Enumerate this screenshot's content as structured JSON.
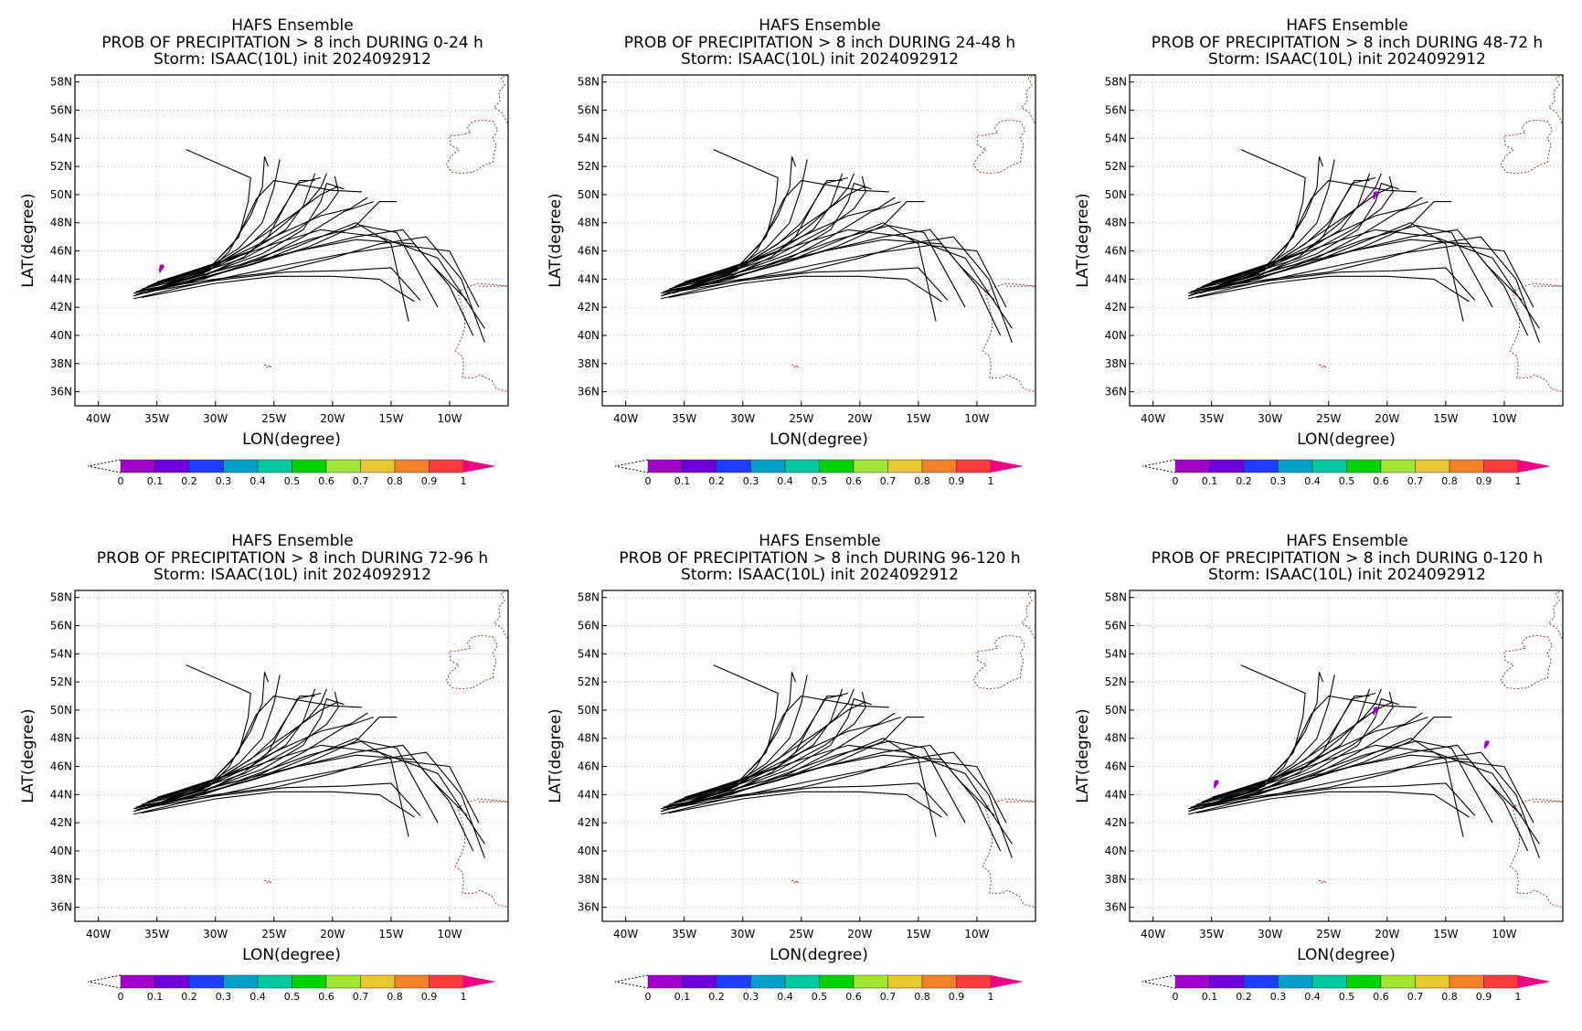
{
  "figure": {
    "panels": [
      {
        "line1": "HAFS Ensemble",
        "line2": "PROB OF PRECIPITATION > 8 inch DURING  0-24 h",
        "line3": "Storm: ISAAC(10L) init 2024092912"
      },
      {
        "line1": "HAFS Ensemble",
        "line2": "PROB OF PRECIPITATION > 8 inch DURING 24-48 h",
        "line3": "Storm: ISAAC(10L) init 2024092912"
      },
      {
        "line1": "HAFS Ensemble",
        "line2": "PROB OF PRECIPITATION > 8 inch DURING 48-72 h",
        "line3": "Storm: ISAAC(10L) init 2024092912"
      },
      {
        "line1": "HAFS Ensemble",
        "line2": "PROB OF PRECIPITATION > 8 inch DURING 72-96 h",
        "line3": "Storm: ISAAC(10L) init 2024092912"
      },
      {
        "line1": "HAFS Ensemble",
        "line2": "PROB OF PRECIPITATION > 8 inch DURING 96-120 h",
        "line3": "Storm: ISAAC(10L) init 2024092912"
      },
      {
        "line1": "HAFS Ensemble",
        "line2": "PROB OF PRECIPITATION > 8 inch DURING 0-120 h",
        "line3": "Storm: ISAAC(10L) init 2024092912"
      }
    ],
    "xlabel": "LON(degree)",
    "ylabel": "LAT(degree)",
    "lon_ticks": [
      "40W",
      "35W",
      "30W",
      "25W",
      "20W",
      "15W",
      "10W"
    ],
    "lat_ticks": [
      "36N",
      "38N",
      "40N",
      "42N",
      "44N",
      "46N",
      "48N",
      "50N",
      "52N",
      "54N",
      "56N",
      "58N"
    ],
    "colorbar_labels": [
      "0",
      "0.1",
      "0.2",
      "0.3",
      "0.4",
      "0.5",
      "0.6",
      "0.7",
      "0.8",
      "0.9",
      "1"
    ],
    "colorbar_colors": [
      "#a000c8",
      "#6e00dc",
      "#1e3cff",
      "#00a0c8",
      "#00c8a0",
      "#00d200",
      "#a0e632",
      "#e6c832",
      "#f08228",
      "#fa3c3c",
      "#f00082"
    ]
  },
  "chart_data": {
    "type": "track-probability-map",
    "extent": {
      "lon_min": -42,
      "lon_max": -5,
      "lat_min": 35,
      "lat_max": 58.5
    },
    "grid": true,
    "probability_blobs": [
      [
        {
          "lon": -34.6,
          "lat": 44.6,
          "value": 0.05
        }
      ],
      [],
      [
        {
          "lon": -21.0,
          "lat": 49.8,
          "value": 0.05
        }
      ],
      [],
      [],
      [
        {
          "lon": -34.6,
          "lat": 44.6,
          "value": 0.05
        },
        {
          "lon": -21.0,
          "lat": 49.8,
          "value": 0.05
        },
        {
          "lon": -11.5,
          "lat": 47.4,
          "value": 0.05
        }
      ]
    ],
    "tracks": [
      [
        [
          -37.0,
          42.8
        ],
        [
          -34.0,
          43.5
        ],
        [
          -30.0,
          44.0
        ],
        [
          -25.0,
          44.5
        ],
        [
          -20.0,
          45.5
        ],
        [
          -16.0,
          46.5
        ],
        [
          -12.0,
          47.0
        ],
        [
          -9.0,
          44.0
        ],
        [
          -7.0,
          39.5
        ]
      ],
      [
        [
          -37.0,
          42.6
        ],
        [
          -33.0,
          43.4
        ],
        [
          -28.0,
          44.3
        ],
        [
          -24.0,
          45.0
        ],
        [
          -19.0,
          45.8
        ],
        [
          -14.0,
          46.4
        ],
        [
          -10.0,
          46.0
        ],
        [
          -7.5,
          42.0
        ]
      ],
      [
        [
          -37.0,
          43.0
        ],
        [
          -33.0,
          43.7
        ],
        [
          -28.0,
          44.8
        ],
        [
          -23.0,
          46.0
        ],
        [
          -18.0,
          47.0
        ],
        [
          -14.0,
          47.5
        ],
        [
          -11.5,
          45.0
        ],
        [
          -8.5,
          42.5
        ]
      ],
      [
        [
          -36.8,
          43.1
        ],
        [
          -32.0,
          43.9
        ],
        [
          -27.0,
          45.0
        ],
        [
          -22.0,
          46.3
        ],
        [
          -18.0,
          47.8
        ],
        [
          -16.0,
          49.5
        ],
        [
          -14.5,
          49.5
        ]
      ],
      [
        [
          -36.8,
          42.9
        ],
        [
          -32.0,
          43.8
        ],
        [
          -26.0,
          45.3
        ],
        [
          -21.0,
          47.0
        ],
        [
          -18.0,
          48.0
        ],
        [
          -15.0,
          46.5
        ],
        [
          -13.5,
          41.0
        ]
      ],
      [
        [
          -36.5,
          43.2
        ],
        [
          -31.0,
          44.0
        ],
        [
          -26.0,
          45.5
        ],
        [
          -22.5,
          47.0
        ],
        [
          -19.0,
          48.8
        ],
        [
          -16.5,
          49.5
        ]
      ],
      [
        [
          -36.5,
          43.0
        ],
        [
          -30.0,
          43.9
        ],
        [
          -24.0,
          44.5
        ],
        [
          -19.0,
          44.6
        ],
        [
          -15.0,
          44.8
        ],
        [
          -12.5,
          42.5
        ]
      ],
      [
        [
          -36.3,
          42.7
        ],
        [
          -30.0,
          43.7
        ],
        [
          -25.0,
          44.2
        ],
        [
          -20.0,
          44.2
        ],
        [
          -16.0,
          44.0
        ],
        [
          -13.0,
          42.4
        ]
      ],
      [
        [
          -36.3,
          43.3
        ],
        [
          -31.0,
          44.3
        ],
        [
          -26.0,
          45.8
        ],
        [
          -22.5,
          47.5
        ],
        [
          -21.0,
          49.5
        ],
        [
          -20.5,
          50.8
        ],
        [
          -19.0,
          50.4
        ]
      ],
      [
        [
          -36.0,
          43.4
        ],
        [
          -31.0,
          44.5
        ],
        [
          -27.0,
          46.0
        ],
        [
          -24.0,
          47.5
        ],
        [
          -22.5,
          49.2
        ],
        [
          -21.5,
          51.5
        ]
      ],
      [
        [
          -36.0,
          43.0
        ],
        [
          -31.0,
          44.2
        ],
        [
          -27.5,
          45.6
        ],
        [
          -25.5,
          47.0
        ],
        [
          -24.0,
          49.3
        ],
        [
          -23.0,
          50.8
        ],
        [
          -21.0,
          51.2
        ]
      ],
      [
        [
          -35.8,
          43.5
        ],
        [
          -31.0,
          44.6
        ],
        [
          -28.0,
          46.2
        ],
        [
          -26.0,
          48.0
        ],
        [
          -25.0,
          50.5
        ],
        [
          -24.5,
          52.5
        ]
      ],
      [
        [
          -35.8,
          43.1
        ],
        [
          -31.0,
          44.4
        ],
        [
          -28.5,
          46.5
        ],
        [
          -27.0,
          48.5
        ],
        [
          -26.0,
          50.5
        ],
        [
          -25.8,
          52.7
        ],
        [
          -25.5,
          52.0
        ]
      ],
      [
        [
          -35.5,
          43.6
        ],
        [
          -30.5,
          44.8
        ],
        [
          -28.0,
          47.0
        ],
        [
          -27.2,
          49.5
        ],
        [
          -27.0,
          51.2
        ],
        [
          -32.5,
          53.2
        ]
      ],
      [
        [
          -35.5,
          43.2
        ],
        [
          -30.5,
          44.6
        ],
        [
          -28.8,
          46.0
        ],
        [
          -27.5,
          48.0
        ],
        [
          -26.5,
          49.7
        ],
        [
          -25.0,
          51.0
        ],
        [
          -20.0,
          50.3
        ],
        [
          -17.5,
          50.2
        ]
      ],
      [
        [
          -35.2,
          43.7
        ],
        [
          -30.0,
          45.0
        ],
        [
          -27.0,
          46.5
        ],
        [
          -25.0,
          48.0
        ],
        [
          -23.5,
          50.0
        ],
        [
          -22.8,
          51.0
        ],
        [
          -21.5,
          51.0
        ]
      ],
      [
        [
          -35.2,
          43.3
        ],
        [
          -30.0,
          44.9
        ],
        [
          -26.5,
          46.8
        ],
        [
          -23.5,
          48.5
        ],
        [
          -21.0,
          50.0
        ],
        [
          -19.5,
          50.6
        ]
      ],
      [
        [
          -35.0,
          43.8
        ],
        [
          -29.5,
          45.2
        ],
        [
          -25.0,
          46.5
        ],
        [
          -21.0,
          47.5
        ],
        [
          -16.0,
          47.0
        ],
        [
          -11.0,
          45.5
        ],
        [
          -9.0,
          43.0
        ],
        [
          -7.0,
          40.5
        ]
      ],
      [
        [
          -34.8,
          43.4
        ],
        [
          -29.0,
          44.8
        ],
        [
          -23.0,
          46.0
        ],
        [
          -18.0,
          46.8
        ],
        [
          -13.0,
          46.5
        ],
        [
          -10.0,
          43.5
        ],
        [
          -8.0,
          40.0
        ]
      ],
      [
        [
          -34.5,
          43.9
        ],
        [
          -29.0,
          45.4
        ],
        [
          -24.5,
          47.2
        ],
        [
          -21.0,
          48.5
        ],
        [
          -18.5,
          49.0
        ],
        [
          -17.0,
          49.8
        ]
      ],
      [
        [
          -34.5,
          43.5
        ],
        [
          -28.0,
          45.0
        ],
        [
          -22.0,
          46.8
        ],
        [
          -17.5,
          47.8
        ],
        [
          -14.5,
          47.3
        ],
        [
          -11.0,
          42.0
        ]
      ],
      [
        [
          -34.2,
          43.7
        ],
        [
          -27.5,
          45.5
        ],
        [
          -23.0,
          47.5
        ],
        [
          -20.5,
          49.0
        ],
        [
          -19.5,
          50.2
        ],
        [
          -19.8,
          51.3
        ]
      ],
      [
        [
          -34.0,
          43.9
        ],
        [
          -27.0,
          46.0
        ],
        [
          -24.0,
          48.0
        ],
        [
          -22.0,
          49.5
        ],
        [
          -21.0,
          50.5
        ],
        [
          -20.5,
          51.5
        ]
      ]
    ],
    "coastlines": [
      [
        [
          -8.0,
          51.6
        ],
        [
          -7.0,
          52.1
        ],
        [
          -6.3,
          52.3
        ],
        [
          -6.2,
          53.0
        ],
        [
          -6.0,
          53.5
        ],
        [
          -6.3,
          54.0
        ],
        [
          -5.9,
          54.6
        ],
        [
          -6.3,
          55.2
        ],
        [
          -7.3,
          55.3
        ],
        [
          -8.0,
          55.2
        ],
        [
          -8.5,
          54.8
        ],
        [
          -8.2,
          54.4
        ],
        [
          -9.4,
          54.2
        ],
        [
          -10.0,
          54.2
        ],
        [
          -9.9,
          53.5
        ],
        [
          -9.2,
          53.2
        ],
        [
          -9.9,
          52.7
        ],
        [
          -10.3,
          52.1
        ],
        [
          -9.8,
          51.6
        ],
        [
          -9.0,
          51.5
        ],
        [
          -8.0,
          51.6
        ]
      ],
      [
        [
          -5.0,
          58.5
        ],
        [
          -5.6,
          58.3
        ],
        [
          -5.3,
          57.8
        ],
        [
          -5.8,
          57.3
        ],
        [
          -5.7,
          56.6
        ],
        [
          -6.2,
          56.2
        ],
        [
          -5.5,
          55.8
        ],
        [
          -5.0,
          55.0
        ]
      ],
      [
        [
          -5.0,
          43.5
        ],
        [
          -6.2,
          43.6
        ],
        [
          -7.5,
          43.7
        ],
        [
          -8.3,
          43.5
        ],
        [
          -9.3,
          43.1
        ],
        [
          -9.1,
          42.5
        ],
        [
          -8.9,
          41.9
        ],
        [
          -8.7,
          41.2
        ],
        [
          -8.7,
          40.5
        ],
        [
          -9.0,
          39.8
        ],
        [
          -9.5,
          38.9
        ],
        [
          -8.9,
          38.5
        ],
        [
          -8.8,
          37.9
        ],
        [
          -8.9,
          37.0
        ],
        [
          -7.9,
          37.0
        ],
        [
          -7.4,
          37.2
        ],
        [
          -6.4,
          36.8
        ],
        [
          -6.0,
          36.2
        ],
        [
          -5.0,
          36.0
        ]
      ],
      [
        [
          -25.8,
          37.9
        ],
        [
          -25.2,
          37.8
        ],
        [
          -25.5,
          37.7
        ],
        [
          -25.8,
          37.9
        ]
      ]
    ]
  }
}
